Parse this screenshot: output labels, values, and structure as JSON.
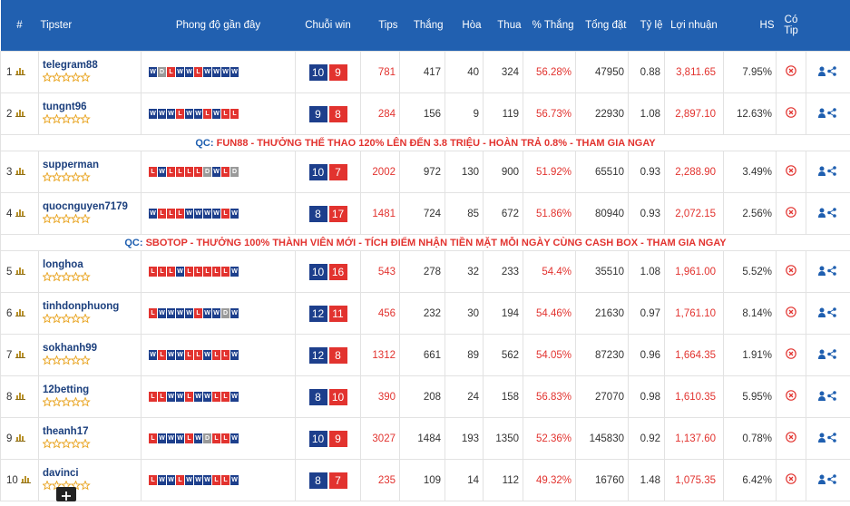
{
  "header": [
    "#",
    "Tipster",
    "Phong độ gần đây",
    "Chuỗi win",
    "Tips",
    "Thắng",
    "Hòa",
    "Thua",
    "% Thắng",
    "Tổng đặt",
    "Tỷ lệ",
    "Lợi nhuận",
    "HS",
    "Có Tip"
  ],
  "rows": [
    {
      "rank": "1",
      "tipster": "telegram88",
      "form": [
        "W",
        "D",
        "L",
        "W",
        "W",
        "L",
        "W",
        "W",
        "W",
        "W"
      ],
      "streak": [
        "10",
        "9"
      ],
      "tips": "781",
      "wins": "417",
      "draws": "40",
      "losses": "324",
      "win_pct": "56.28%",
      "total": "47950",
      "ratio": "0.88",
      "profit": "3,811.65",
      "hs": "7.95%"
    },
    {
      "rank": "2",
      "tipster": "tungnt96",
      "form": [
        "W",
        "W",
        "W",
        "L",
        "W",
        "W",
        "L",
        "W",
        "L",
        "L"
      ],
      "streak": [
        "9",
        "8"
      ],
      "tips": "284",
      "wins": "156",
      "draws": "9",
      "losses": "119",
      "win_pct": "56.73%",
      "total": "22930",
      "ratio": "1.08",
      "profit": "2,897.10",
      "hs": "12.63%"
    },
    {
      "qc": "QC:",
      "text": "FUN88 - THƯỞNG THỂ THAO 120% LÊN ĐẾN 3.8 TRIỆU - HOÀN TRẢ 0.8% - THAM GIA NGAY"
    },
    {
      "rank": "3",
      "tipster": "supperman",
      "form": [
        "L",
        "W",
        "L",
        "L",
        "L",
        "L",
        "D",
        "W",
        "L",
        "D"
      ],
      "streak": [
        "10",
        "7"
      ],
      "tips": "2002",
      "wins": "972",
      "draws": "130",
      "losses": "900",
      "win_pct": "51.92%",
      "total": "65510",
      "ratio": "0.93",
      "profit": "2,288.90",
      "hs": "3.49%"
    },
    {
      "rank": "4",
      "tipster": "quocnguyen7179",
      "form": [
        "W",
        "L",
        "L",
        "L",
        "W",
        "W",
        "W",
        "W",
        "L",
        "W"
      ],
      "streak": [
        "8",
        "17"
      ],
      "tips": "1481",
      "wins": "724",
      "draws": "85",
      "losses": "672",
      "win_pct": "51.86%",
      "total": "80940",
      "ratio": "0.93",
      "profit": "2,072.15",
      "hs": "2.56%"
    },
    {
      "qc": "QC:",
      "text": "SBOTOP - THƯỞNG 100% THÀNH VIÊN MỚI - TÍCH ĐIỂM NHẬN TIỀN MẶT MỖI NGÀY CÙNG CASH BOX - THAM GIA NGAY"
    },
    {
      "rank": "5",
      "tipster": "longhoa",
      "form": [
        "L",
        "L",
        "L",
        "W",
        "L",
        "L",
        "L",
        "L",
        "L",
        "W"
      ],
      "streak": [
        "10",
        "16"
      ],
      "tips": "543",
      "wins": "278",
      "draws": "32",
      "losses": "233",
      "win_pct": "54.4%",
      "total": "35510",
      "ratio": "1.08",
      "profit": "1,961.00",
      "hs": "5.52%"
    },
    {
      "rank": "6",
      "tipster": "tinhdonphuong",
      "form": [
        "L",
        "W",
        "W",
        "W",
        "W",
        "L",
        "W",
        "W",
        "D",
        "W"
      ],
      "streak": [
        "12",
        "11"
      ],
      "tips": "456",
      "wins": "232",
      "draws": "30",
      "losses": "194",
      "win_pct": "54.46%",
      "total": "21630",
      "ratio": "0.97",
      "profit": "1,761.10",
      "hs": "8.14%"
    },
    {
      "rank": "7",
      "tipster": "sokhanh99",
      "form": [
        "W",
        "L",
        "W",
        "W",
        "L",
        "L",
        "W",
        "L",
        "L",
        "W"
      ],
      "streak": [
        "12",
        "8"
      ],
      "tips": "1312",
      "wins": "661",
      "draws": "89",
      "losses": "562",
      "win_pct": "54.05%",
      "total": "87230",
      "ratio": "0.96",
      "profit": "1,664.35",
      "hs": "1.91%"
    },
    {
      "rank": "8",
      "tipster": "12betting",
      "form": [
        "L",
        "L",
        "W",
        "W",
        "L",
        "W",
        "W",
        "L",
        "L",
        "W"
      ],
      "streak": [
        "8",
        "10"
      ],
      "tips": "390",
      "wins": "208",
      "draws": "24",
      "losses": "158",
      "win_pct": "56.83%",
      "total": "27070",
      "ratio": "0.98",
      "profit": "1,610.35",
      "hs": "5.95%"
    },
    {
      "rank": "9",
      "tipster": "theanh17",
      "form": [
        "L",
        "W",
        "W",
        "W",
        "L",
        "W",
        "D",
        "L",
        "L",
        "W"
      ],
      "streak": [
        "10",
        "9"
      ],
      "tips": "3027",
      "wins": "1484",
      "draws": "193",
      "losses": "1350",
      "win_pct": "52.36%",
      "total": "145830",
      "ratio": "0.92",
      "profit": "1,137.60",
      "hs": "0.78%"
    },
    {
      "rank": "10",
      "tipster": "davinci",
      "form": [
        "L",
        "W",
        "W",
        "L",
        "W",
        "W",
        "W",
        "L",
        "L",
        "W"
      ],
      "streak": [
        "8",
        "7"
      ],
      "tips": "235",
      "wins": "109",
      "draws": "14",
      "losses": "112",
      "win_pct": "49.32%",
      "total": "16760",
      "ratio": "1.48",
      "profit": "1,075.35",
      "hs": "6.42%"
    }
  ]
}
